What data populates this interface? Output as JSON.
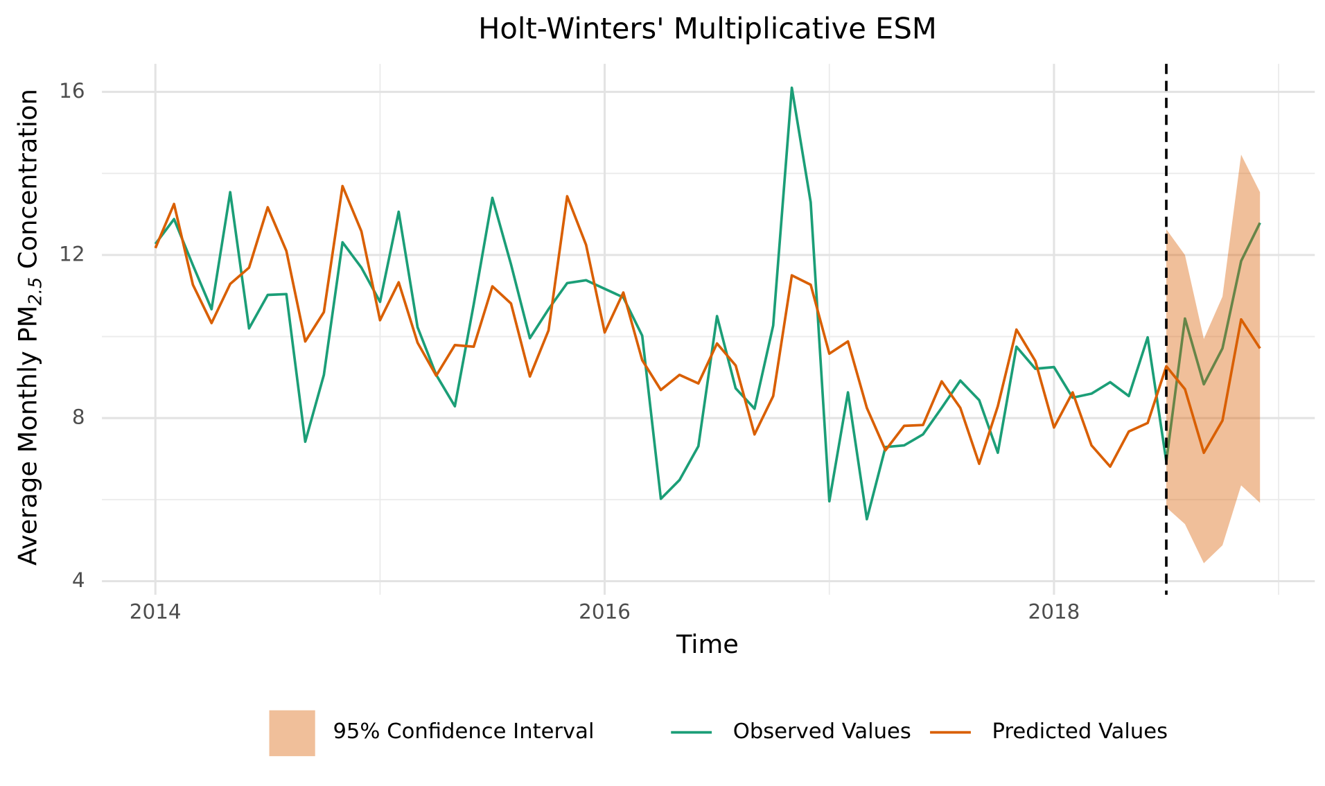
{
  "chart_data": {
    "type": "line",
    "title": "Holt-Winters' Multiplicative ESM",
    "x_label": "Time",
    "y_label": {
      "text": "Average Monthly PM",
      "subscript": "2.5",
      "suffix": " Concentration"
    },
    "x": [
      2014,
      2014.083,
      2014.167,
      2014.25,
      2014.333,
      2014.417,
      2014.5,
      2014.583,
      2014.667,
      2014.75,
      2014.833,
      2014.917,
      2015,
      2015.083,
      2015.167,
      2015.25,
      2015.333,
      2015.417,
      2015.5,
      2015.583,
      2015.667,
      2015.75,
      2015.833,
      2015.917,
      2016,
      2016.083,
      2016.167,
      2016.25,
      2016.333,
      2016.417,
      2016.5,
      2016.583,
      2016.667,
      2016.75,
      2016.833,
      2016.917,
      2017,
      2017.083,
      2017.167,
      2017.25,
      2017.333,
      2017.417,
      2017.5,
      2017.583,
      2017.667,
      2017.75,
      2017.833,
      2017.917,
      2018,
      2018.083,
      2018.167,
      2018.25,
      2018.333,
      2018.417,
      2018.5,
      2018.583,
      2018.667,
      2018.75,
      2018.833,
      2018.917
    ],
    "series": [
      {
        "name": "Observed Values",
        "color": "#1b9e77",
        "values": [
          12.27,
          12.88,
          11.75,
          10.67,
          13.54,
          10.2,
          11.02,
          11.04,
          7.42,
          9.06,
          12.31,
          11.69,
          10.85,
          13.06,
          10.23,
          9.06,
          8.29,
          10.79,
          13.4,
          11.77,
          9.96,
          10.67,
          11.31,
          11.38,
          11.17,
          10.96,
          10.02,
          6.02,
          6.48,
          7.31,
          10.5,
          8.73,
          8.23,
          10.27,
          16.1,
          13.29,
          5.96,
          8.63,
          5.52,
          7.29,
          7.33,
          7.6,
          8.25,
          8.92,
          8.44,
          7.15,
          9.75,
          9.21,
          9.25,
          8.5,
          8.6,
          8.88,
          8.54,
          9.98,
          6.94,
          10.44,
          8.83,
          9.71,
          11.85,
          12.79
        ]
      },
      {
        "name": "Predicted Values",
        "color": "#d95f02",
        "values": [
          12.17,
          13.25,
          11.27,
          10.33,
          11.29,
          11.69,
          13.17,
          12.1,
          9.88,
          10.6,
          13.69,
          12.58,
          10.4,
          11.33,
          9.85,
          9.04,
          9.79,
          9.75,
          11.23,
          10.81,
          9.02,
          10.15,
          13.44,
          12.25,
          10.1,
          11.08,
          9.42,
          8.69,
          9.06,
          8.85,
          9.83,
          9.29,
          7.6,
          8.54,
          11.5,
          11.27,
          9.58,
          9.88,
          8.25,
          7.21,
          7.81,
          7.83,
          8.9,
          8.25,
          6.88,
          8.29,
          10.17,
          9.4,
          7.77,
          8.63,
          7.33,
          6.81,
          7.67,
          7.88,
          9.27,
          8.71,
          7.15,
          7.94,
          10.42,
          9.71
        ]
      }
    ],
    "interval": {
      "name": "95% Confidence Interval",
      "color": "#d95f02",
      "opacity": 0.4,
      "x": [
        2018.5,
        2018.583,
        2018.667,
        2018.75,
        2018.833,
        2018.917
      ],
      "lower": [
        5.81,
        5.4,
        4.44,
        4.88,
        6.35,
        5.92
      ],
      "upper": [
        12.63,
        12.0,
        9.94,
        10.98,
        14.46,
        13.54
      ]
    },
    "vline": 2018.5,
    "xlim": [
      2013.762,
      2019.161
    ],
    "ylim": [
      3.667,
      16.688
    ],
    "xticks": [
      2014,
      2016,
      2018
    ],
    "yticks": [
      4,
      8,
      12,
      16
    ],
    "minor_xticks": [
      2015,
      2017,
      2019
    ],
    "minor_yticks": [
      6,
      10,
      14
    ],
    "grid": true,
    "legend": "bottom"
  }
}
